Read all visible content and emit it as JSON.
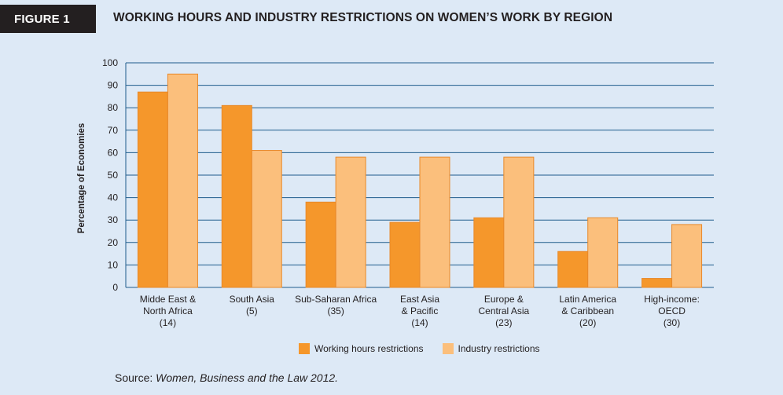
{
  "figure_label": "FIGURE 1",
  "title": "WORKING HOURS AND INDUSTRY RESTRICTIONS ON WOMEN’S WORK BY REGION",
  "source_prefix": "Source: ",
  "source_title": "Women, Business and the Law 2012.",
  "colors": {
    "working_hours": "#f5972b",
    "industry": "#fbbf7c",
    "gridline": "#1f5c8c"
  },
  "chart_data": {
    "type": "bar",
    "title": "WORKING HOURS AND INDUSTRY RESTRICTIONS ON WOMEN’S WORK BY REGION",
    "ylabel": "Percentage of Economies",
    "xlabel": "",
    "ylim": [
      0,
      100
    ],
    "yticks": [
      0,
      10,
      20,
      30,
      40,
      50,
      60,
      70,
      80,
      90,
      100
    ],
    "categories": [
      [
        "Midde East &",
        "North Africa",
        "(14)"
      ],
      [
        "South Asia",
        "(5)"
      ],
      [
        "Sub-Saharan Africa",
        "(35)"
      ],
      [
        "East Asia",
        "& Pacific",
        "(14)"
      ],
      [
        "Europe &",
        "Central Asia",
        "(23)"
      ],
      [
        "Latin America",
        "& Caribbean",
        "(20)"
      ],
      [
        "High-income:",
        "OECD",
        "(30)"
      ]
    ],
    "series": [
      {
        "name": "Working hours restrictions",
        "values": [
          87,
          81,
          38,
          29,
          31,
          16,
          4
        ]
      },
      {
        "name": "Industry restrictions",
        "values": [
          95,
          61,
          58,
          58,
          58,
          31,
          28
        ]
      }
    ],
    "legend": "bottom"
  }
}
